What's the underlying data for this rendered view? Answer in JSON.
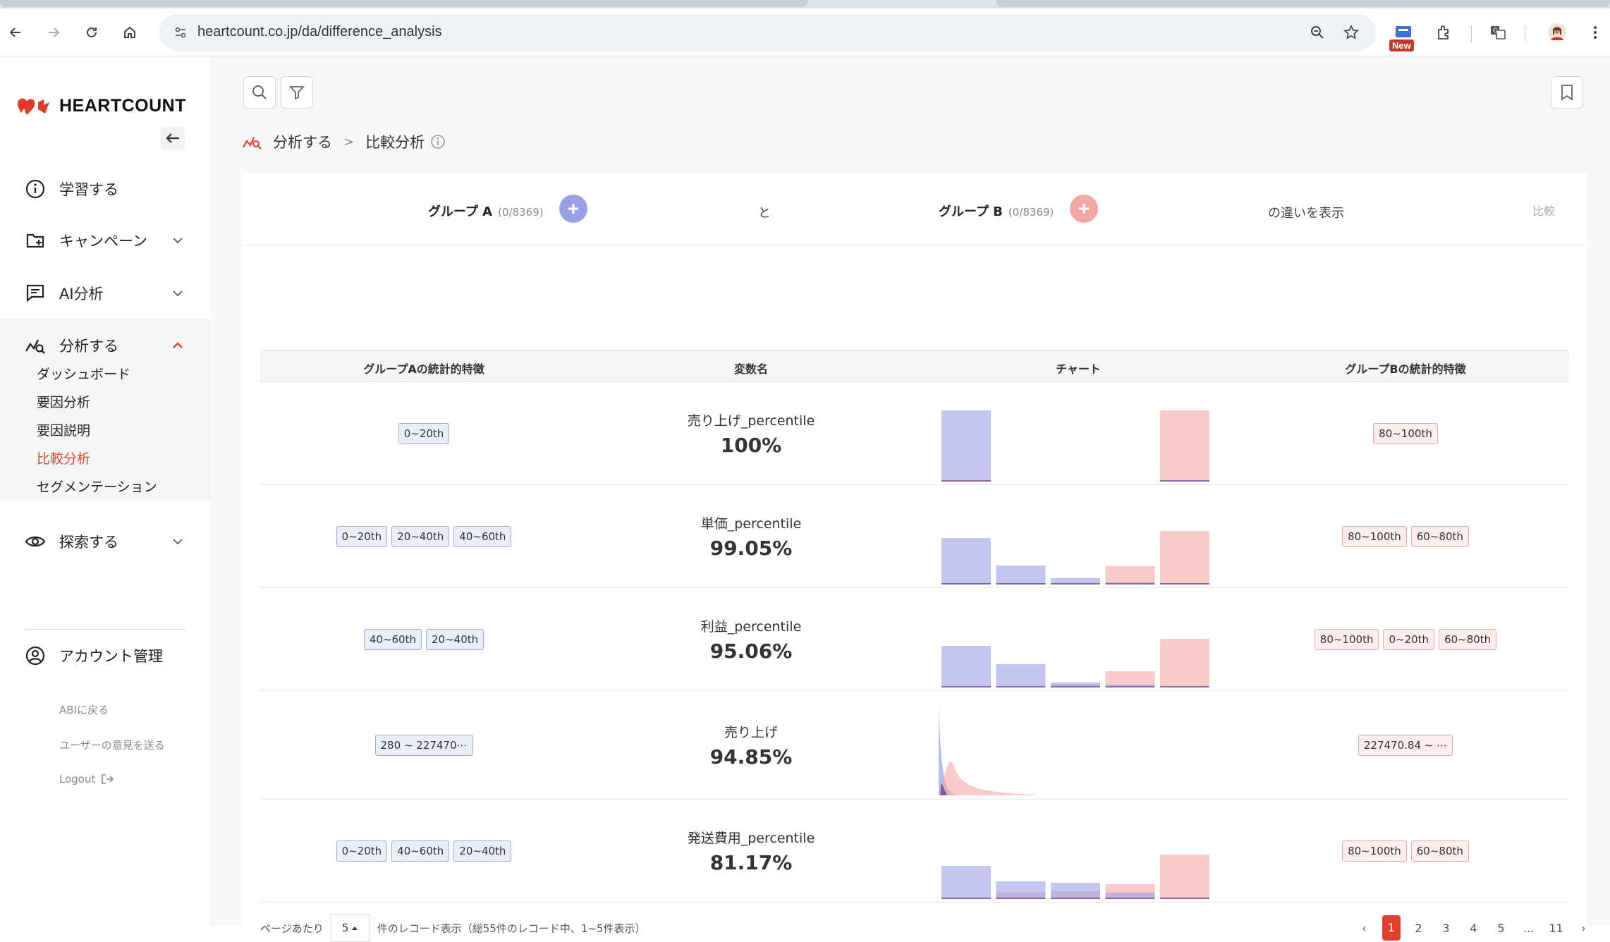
{
  "browser": {
    "url": "heartcount.co.jp/da/difference_analysis",
    "new_badge": "New"
  },
  "sidebar": {
    "logo_text": "HEARTCOUNT",
    "menu": [
      {
        "label": "学習する"
      },
      {
        "label": "キャンペーン"
      },
      {
        "label": "AI分析"
      },
      {
        "label": "分析する"
      },
      {
        "label": "探索する"
      },
      {
        "label": "アカウント管理"
      }
    ],
    "analyze_sub": [
      "ダッシュボード",
      "要因分析",
      "要因説明",
      "比較分析",
      "セグメンテーション"
    ],
    "active_sub": "比較分析",
    "links": {
      "back_abi": "ABIに戻る",
      "feedback": "ユーザーの意見を送る",
      "logout": "Logout"
    }
  },
  "breadcrumb": {
    "parent": "分析する",
    "separator": ">",
    "current": "比較分析"
  },
  "group_bar": {
    "group_a": "グループ A",
    "group_a_count": "(0/8369)",
    "and": "と",
    "group_b": "グループ B",
    "group_b_count": "(0/8369)",
    "show": "の違いを表示",
    "compare": "比較"
  },
  "table": {
    "headers": [
      "グループAの統計的特徴",
      "変数名",
      "チャート",
      "グループBの統計的特徴"
    ],
    "rows": [
      {
        "a_tags": [
          "0~20th"
        ],
        "name": "売り上げ_percentile",
        "pct": "100%",
        "b_tags": [
          "80~100th"
        ],
        "chart": {
          "type": "bar",
          "a": [
            1,
            0,
            0,
            0,
            0
          ],
          "b": [
            0,
            0,
            0,
            0,
            1
          ]
        }
      },
      {
        "a_tags": [
          "0~20th",
          "20~40th",
          "40~60th"
        ],
        "name": "単価_percentile",
        "pct": "99.05%",
        "b_tags": [
          "80~100th",
          "60~80th"
        ],
        "chart": {
          "type": "bar",
          "a": [
            0.65,
            0.26,
            0.08,
            0.02,
            0
          ],
          "b": [
            0,
            0,
            0,
            0.25,
            0.75
          ]
        }
      },
      {
        "a_tags": [
          "40~60th",
          "20~40th"
        ],
        "name": "利益_percentile",
        "pct": "95.06%",
        "b_tags": [
          "80~100th",
          "0~20th",
          "60~80th"
        ],
        "chart": {
          "type": "bar",
          "a": [
            0.58,
            0.32,
            0.06,
            0.03,
            0
          ],
          "b": [
            0,
            0,
            0.04,
            0.22,
            0.68
          ]
        }
      },
      {
        "a_tags": [
          "280 ~ 227470⋯"
        ],
        "name": "売り上げ",
        "pct": "94.85%",
        "b_tags": [
          "227470.84 ~ ⋯"
        ],
        "chart": {
          "type": "density"
        }
      },
      {
        "a_tags": [
          "0~20th",
          "40~60th",
          "20~40th"
        ],
        "name": "発送費用_percentile",
        "pct": "81.17%",
        "b_tags": [
          "80~100th",
          "60~80th"
        ],
        "chart": {
          "type": "bar",
          "a": [
            0.46,
            0.24,
            0.22,
            0.08,
            0
          ],
          "b": [
            0,
            0.08,
            0.1,
            0.2,
            0.62
          ]
        }
      }
    ]
  },
  "pagination": {
    "per_page_label": "ページあたり",
    "per_page_value": "5",
    "records_label": "件のレコード表示（総55件のレコード中、1~5件表示）",
    "prev": "‹",
    "pages": [
      "1",
      "2",
      "3",
      "4",
      "5",
      "...",
      "11"
    ],
    "next": "›",
    "current": "1"
  },
  "colors": {
    "accent": "#e0402e",
    "group_a": "#9aa0e6",
    "group_b": "#f3a7a4"
  }
}
